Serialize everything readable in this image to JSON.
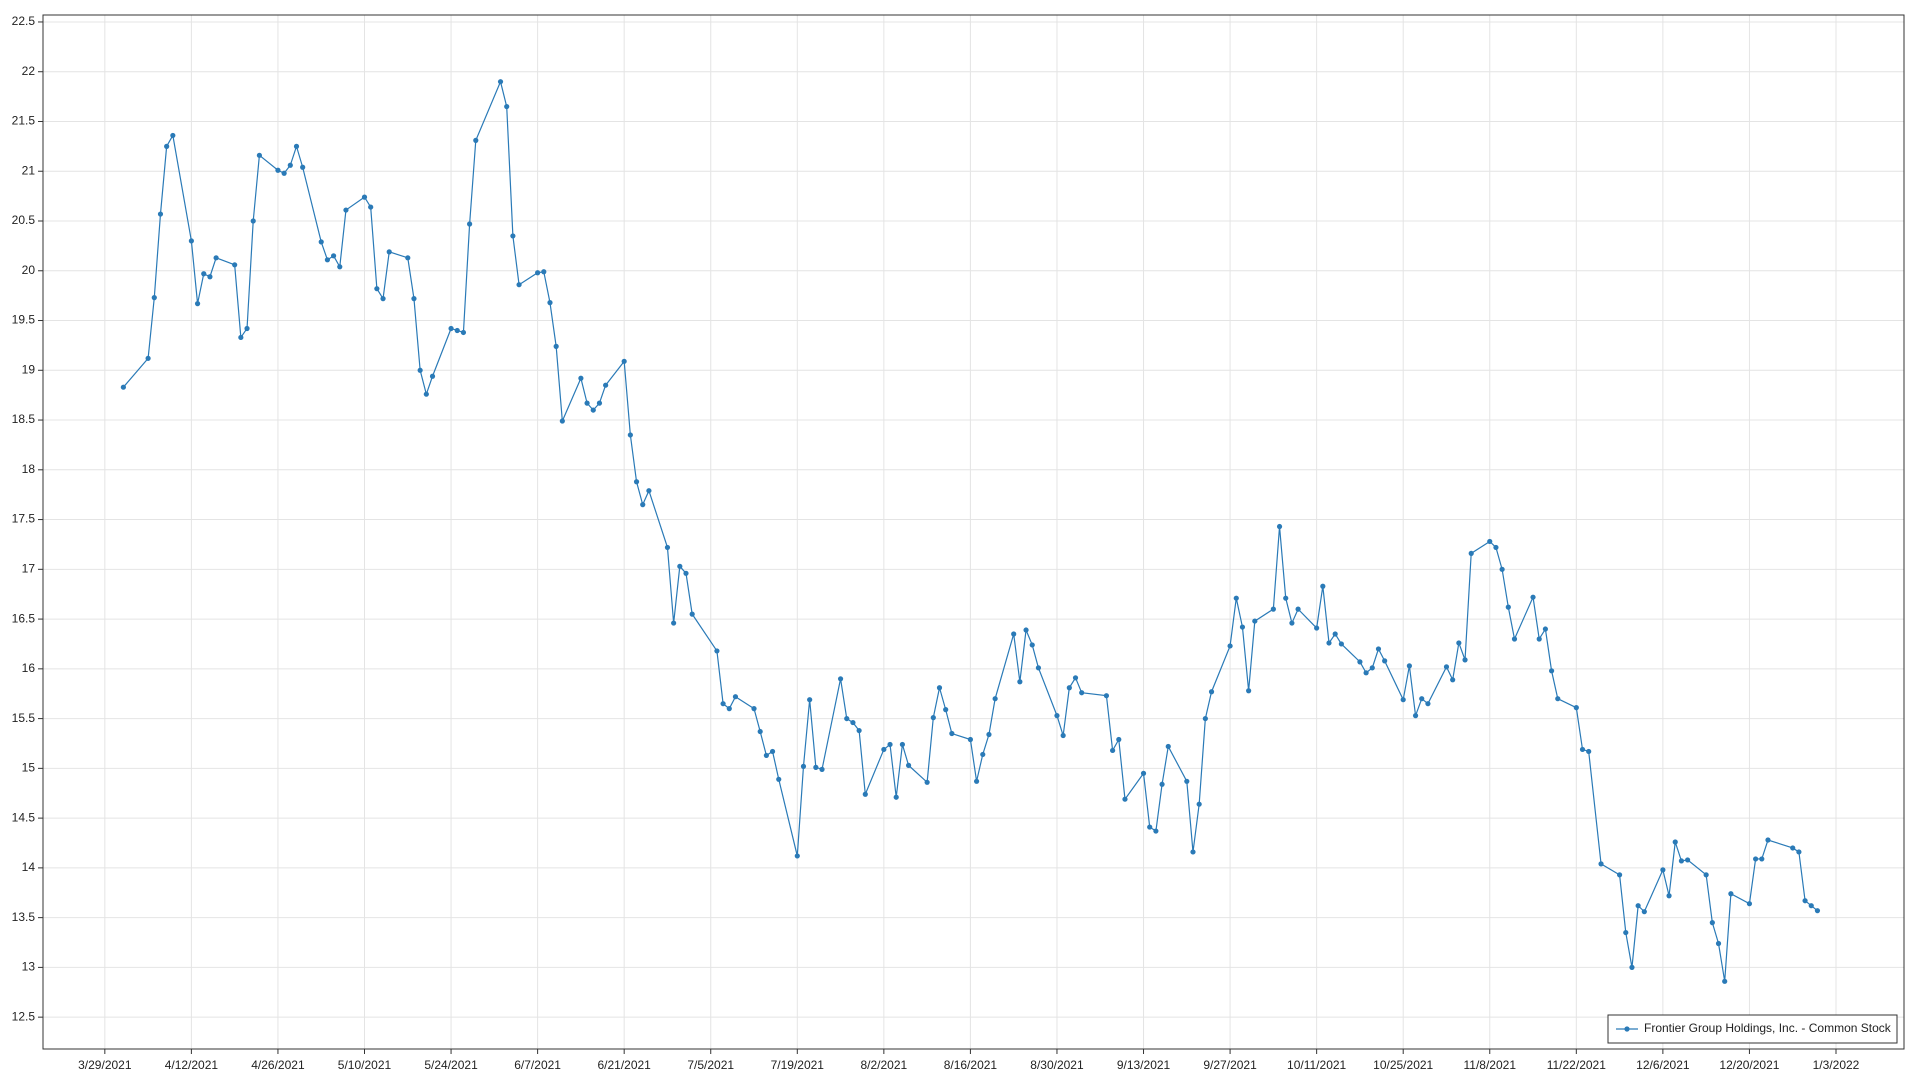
{
  "chart_data": {
    "type": "line",
    "x": [
      "4/1/2021",
      "4/5/2021",
      "4/6/2021",
      "4/7/2021",
      "4/8/2021",
      "4/9/2021",
      "4/12/2021",
      "4/13/2021",
      "4/14/2021",
      "4/15/2021",
      "4/16/2021",
      "4/19/2021",
      "4/20/2021",
      "4/21/2021",
      "4/22/2021",
      "4/23/2021",
      "4/26/2021",
      "4/27/2021",
      "4/28/2021",
      "4/29/2021",
      "4/30/2021",
      "5/3/2021",
      "5/4/2021",
      "5/5/2021",
      "5/6/2021",
      "5/7/2021",
      "5/10/2021",
      "5/11/2021",
      "5/12/2021",
      "5/13/2021",
      "5/14/2021",
      "5/17/2021",
      "5/18/2021",
      "5/19/2021",
      "5/20/2021",
      "5/21/2021",
      "5/24/2021",
      "5/25/2021",
      "5/26/2021",
      "5/27/2021",
      "5/28/2021",
      "6/1/2021",
      "6/2/2021",
      "6/3/2021",
      "6/4/2021",
      "6/7/2021",
      "6/8/2021",
      "6/9/2021",
      "6/10/2021",
      "6/11/2021",
      "6/14/2021",
      "6/15/2021",
      "6/16/2021",
      "6/17/2021",
      "6/18/2021",
      "6/21/2021",
      "6/22/2021",
      "6/23/2021",
      "6/24/2021",
      "6/25/2021",
      "6/28/2021",
      "6/29/2021",
      "6/30/2021",
      "7/1/2021",
      "7/2/2021",
      "7/6/2021",
      "7/7/2021",
      "7/8/2021",
      "7/9/2021",
      "7/12/2021",
      "7/13/2021",
      "7/14/2021",
      "7/15/2021",
      "7/16/2021",
      "7/19/2021",
      "7/20/2021",
      "7/21/2021",
      "7/22/2021",
      "7/23/2021",
      "7/26/2021",
      "7/27/2021",
      "7/28/2021",
      "7/29/2021",
      "7/30/2021",
      "8/2/2021",
      "8/3/2021",
      "8/4/2021",
      "8/5/2021",
      "8/6/2021",
      "8/9/2021",
      "8/10/2021",
      "8/11/2021",
      "8/12/2021",
      "8/13/2021",
      "8/16/2021",
      "8/17/2021",
      "8/18/2021",
      "8/19/2021",
      "8/20/2021",
      "8/23/2021",
      "8/24/2021",
      "8/25/2021",
      "8/26/2021",
      "8/27/2021",
      "8/30/2021",
      "8/31/2021",
      "9/1/2021",
      "9/2/2021",
      "9/3/2021",
      "9/7/2021",
      "9/8/2021",
      "9/9/2021",
      "9/10/2021",
      "9/13/2021",
      "9/14/2021",
      "9/15/2021",
      "9/16/2021",
      "9/17/2021",
      "9/20/2021",
      "9/21/2021",
      "9/22/2021",
      "9/23/2021",
      "9/24/2021",
      "9/27/2021",
      "9/28/2021",
      "9/29/2021",
      "9/30/2021",
      "10/1/2021",
      "10/4/2021",
      "10/5/2021",
      "10/6/2021",
      "10/7/2021",
      "10/8/2021",
      "10/11/2021",
      "10/12/2021",
      "10/13/2021",
      "10/14/2021",
      "10/15/2021",
      "10/18/2021",
      "10/19/2021",
      "10/20/2021",
      "10/21/2021",
      "10/22/2021",
      "10/25/2021",
      "10/26/2021",
      "10/27/2021",
      "10/28/2021",
      "10/29/2021",
      "11/1/2021",
      "11/2/2021",
      "11/3/2021",
      "11/4/2021",
      "11/5/2021",
      "11/8/2021",
      "11/9/2021",
      "11/10/2021",
      "11/11/2021",
      "11/12/2021",
      "11/15/2021",
      "11/16/2021",
      "11/17/2021",
      "11/18/2021",
      "11/19/2021",
      "11/22/2021",
      "11/23/2021",
      "11/24/2021",
      "11/26/2021",
      "11/29/2021",
      "11/30/2021",
      "12/1/2021",
      "12/2/2021",
      "12/3/2021",
      "12/6/2021",
      "12/7/2021",
      "12/8/2021",
      "12/9/2021",
      "12/10/2021",
      "12/13/2021",
      "12/14/2021",
      "12/15/2021",
      "12/16/2021",
      "12/17/2021",
      "12/20/2021",
      "12/21/2021",
      "12/22/2021",
      "12/23/2021",
      "12/27/2021",
      "12/28/2021",
      "12/29/2021",
      "12/30/2021",
      "12/31/2021"
    ],
    "series": [
      {
        "name": "Frontier Group Holdings, Inc. - Common Stock",
        "color": "#2a7ab7",
        "values": [
          18.83,
          19.12,
          19.73,
          20.57,
          21.25,
          21.36,
          20.3,
          19.67,
          19.97,
          19.94,
          20.13,
          20.06,
          19.33,
          19.42,
          20.5,
          21.16,
          21.01,
          20.98,
          21.06,
          21.25,
          21.04,
          20.29,
          20.11,
          20.15,
          20.04,
          20.61,
          20.74,
          20.64,
          19.82,
          19.72,
          20.19,
          20.13,
          19.72,
          19.0,
          18.76,
          18.94,
          19.42,
          19.4,
          19.38,
          20.47,
          21.31,
          21.9,
          21.65,
          20.35,
          19.86,
          19.98,
          19.99,
          19.68,
          19.24,
          18.49,
          18.92,
          18.67,
          18.6,
          18.67,
          18.85,
          19.09,
          18.35,
          17.88,
          17.65,
          17.79,
          17.22,
          16.46,
          17.03,
          16.96,
          16.55,
          16.18,
          15.65,
          15.6,
          15.72,
          15.6,
          15.37,
          15.13,
          15.17,
          14.89,
          14.12,
          15.02,
          15.69,
          15.01,
          14.99,
          15.9,
          15.5,
          15.46,
          15.38,
          14.74,
          15.19,
          15.24,
          14.71,
          15.24,
          15.03,
          14.86,
          15.51,
          15.81,
          15.59,
          15.35,
          15.29,
          14.87,
          15.14,
          15.34,
          15.7,
          16.35,
          15.87,
          16.39,
          16.24,
          16.01,
          15.53,
          15.33,
          15.81,
          15.91,
          15.76,
          15.73,
          15.18,
          15.29,
          14.69,
          14.95,
          14.41,
          14.37,
          14.84,
          15.22,
          14.87,
          14.16,
          14.64,
          15.5,
          15.77,
          16.23,
          16.71,
          16.42,
          15.78,
          16.48,
          16.6,
          17.43,
          16.71,
          16.46,
          16.6,
          16.41,
          16.83,
          16.26,
          16.35,
          16.25,
          16.07,
          15.96,
          16.01,
          16.2,
          16.08,
          15.69,
          16.03,
          15.53,
          15.7,
          15.65,
          16.02,
          15.89,
          16.26,
          16.09,
          17.16,
          17.28,
          17.22,
          17.0,
          16.62,
          16.3,
          16.72,
          16.3,
          16.4,
          15.98,
          15.7,
          15.61,
          15.19,
          15.17,
          14.04,
          13.93,
          13.35,
          13.0,
          13.62,
          13.56,
          13.98,
          13.72,
          14.26,
          14.07,
          14.08,
          13.93,
          13.45,
          13.24,
          12.86,
          13.74,
          13.64,
          14.09,
          14.09,
          14.28,
          14.2,
          14.16,
          13.67,
          13.62,
          13.57
        ]
      }
    ],
    "xlim": [
      "3/19/2021",
      "1/14/2022"
    ],
    "xticks": [
      "3/29/2021",
      "4/12/2021",
      "4/26/2021",
      "5/10/2021",
      "5/24/2021",
      "6/7/2021",
      "6/21/2021",
      "7/5/2021",
      "7/19/2021",
      "8/2/2021",
      "8/16/2021",
      "8/30/2021",
      "9/13/2021",
      "9/27/2021",
      "10/11/2021",
      "10/25/2021",
      "11/8/2021",
      "11/22/2021",
      "12/6/2021",
      "12/20/2021",
      "1/3/2022"
    ],
    "ylim": [
      12.18,
      22.57
    ],
    "yticks": [
      12.5,
      13,
      13.5,
      14,
      14.5,
      15,
      15.5,
      16,
      16.5,
      17,
      17.5,
      18,
      18.5,
      19,
      19.5,
      20,
      20.5,
      21,
      21.5,
      22,
      22.5
    ],
    "grid": true,
    "legend": "lower right",
    "markers": true
  }
}
